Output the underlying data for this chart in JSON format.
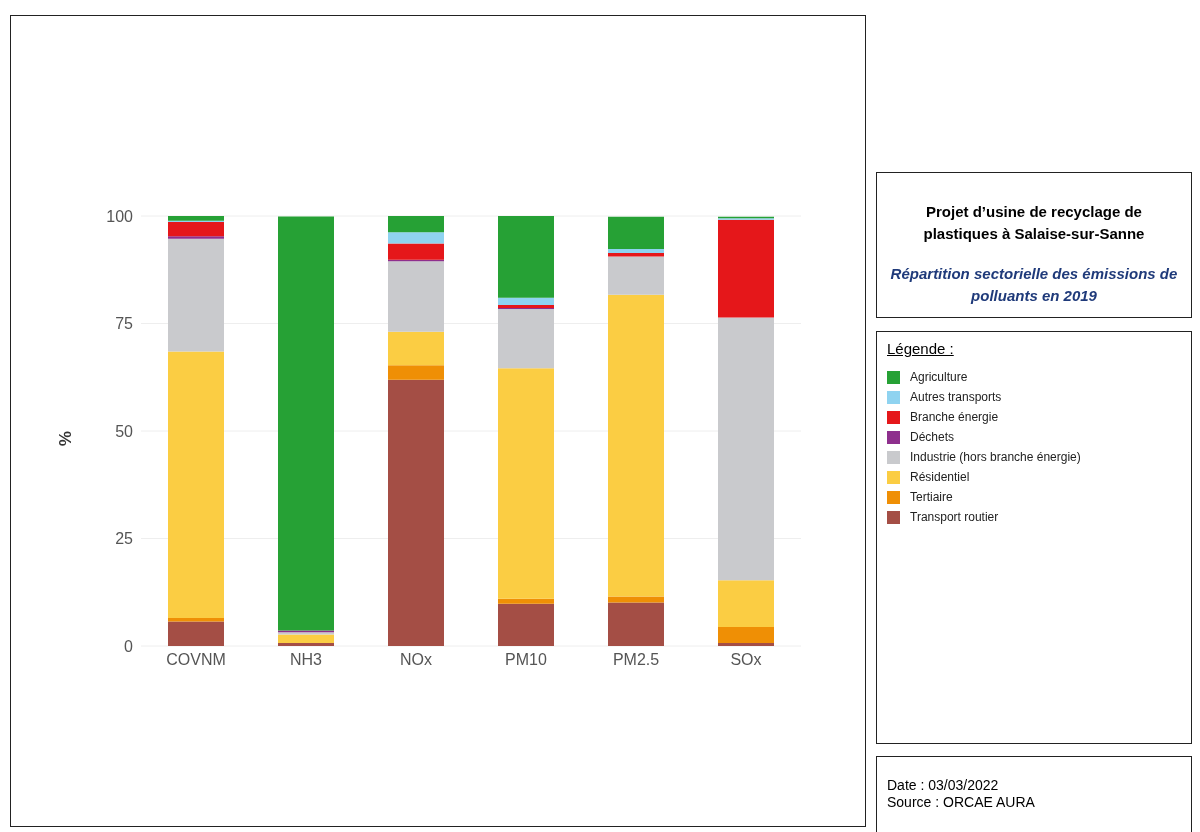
{
  "chart_data": {
    "type": "bar",
    "title": "Projet d’usine de recyclage de plastiques à Salaise-sur-Sanne",
    "subtitle": "Répartition sectorielle des émissions de polluants en 2019",
    "ylabel": "%",
    "legend_title": "Légende :",
    "annotations": [
      "Date : 03/03/2022",
      "Source : ORCAE AURA"
    ],
    "categories": [
      "COVNM",
      "NH3",
      "NOx",
      "PM10",
      "PM2.5",
      "SOx"
    ],
    "stacked": true,
    "ylim": [
      0,
      100
    ],
    "yticks": [
      0,
      25,
      50,
      75,
      100
    ],
    "grid": "y",
    "legend": "right",
    "series": [
      {
        "name": "Transport routier",
        "color": "#a44e45",
        "values": [
          5.7,
          0.7,
          61.9,
          9.8,
          10.1,
          0.7
        ]
      },
      {
        "name": "Tertiaire",
        "color": "#ef8f05",
        "values": [
          0.8,
          null,
          3.4,
          1.2,
          1.4,
          3.7
        ]
      },
      {
        "name": "Résidentiel",
        "color": "#fbcd43",
        "values": [
          62.0,
          2.0,
          7.8,
          53.6,
          70.2,
          10.9
        ]
      },
      {
        "name": "Industrie (hors branche énergie)",
        "color": "#c9cacd",
        "values": [
          26.2,
          0.5,
          16.4,
          13.8,
          8.9,
          61.1
        ]
      },
      {
        "name": "Déchets",
        "color": "#8e2f8d",
        "values": [
          0.6,
          0.4,
          0.3,
          0.2,
          null,
          null
        ]
      },
      {
        "name": "Branche énergie",
        "color": "#e5171a",
        "values": [
          3.3,
          0,
          3.8,
          0.7,
          0.8,
          22.7
        ]
      },
      {
        "name": "Autres transports",
        "color": "#8fd3f0",
        "values": [
          0.3,
          0,
          2.6,
          1.7,
          0.9,
          0.4
        ]
      },
      {
        "name": "Agriculture",
        "color": "#26a135",
        "values": [
          1.1,
          96.3,
          3.8,
          19.0,
          7.5,
          0.3
        ]
      }
    ]
  }
}
